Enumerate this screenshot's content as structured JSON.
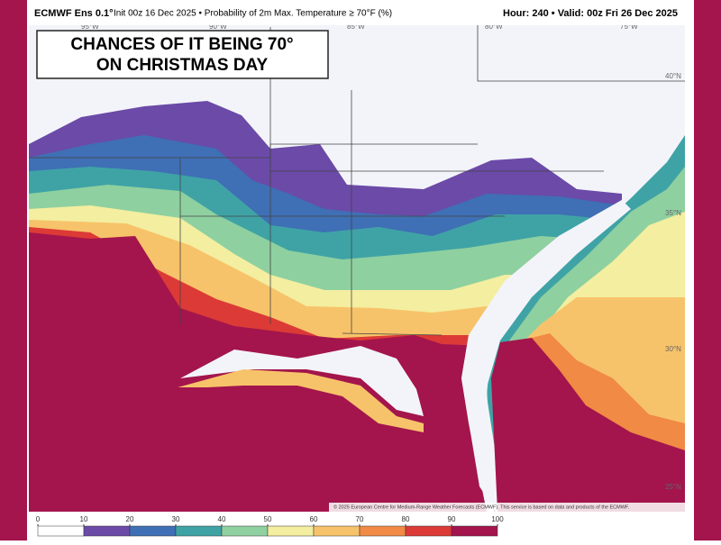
{
  "header": {
    "model": "ECMWF Ens 0.1°",
    "description": "Init 00z 16 Dec 2025 • Probability of 2m Max. Temperature ≥ 70°F (%)",
    "valid": "Hour: 240 • Valid: 00z Fri 26 Dec 2025"
  },
  "title_lines": [
    "CHANCES OF IT BEING 70°",
    "ON CHRISTMAS DAY"
  ],
  "lon_labels": [
    "95°W",
    "90°W",
    "85°W",
    "80°W",
    "75°W"
  ],
  "lat_labels": [
    "40°N",
    "35°N",
    "30°N",
    "25°N"
  ],
  "credit": "© 2025 European Centre for Medium-Range Weather Forecasts (ECMWF). This service is based on data and products of the ECMWF.",
  "colorbar": {
    "ticks": [
      0,
      10,
      20,
      30,
      40,
      50,
      60,
      70,
      80,
      90,
      100
    ],
    "colors": [
      "#ffffff",
      "#6b4aa8",
      "#3f6fb5",
      "#3fa3a6",
      "#8fd0a0",
      "#f3eea0",
      "#f7c36a",
      "#f08a44",
      "#dc3a36",
      "#a3154c"
    ]
  }
}
